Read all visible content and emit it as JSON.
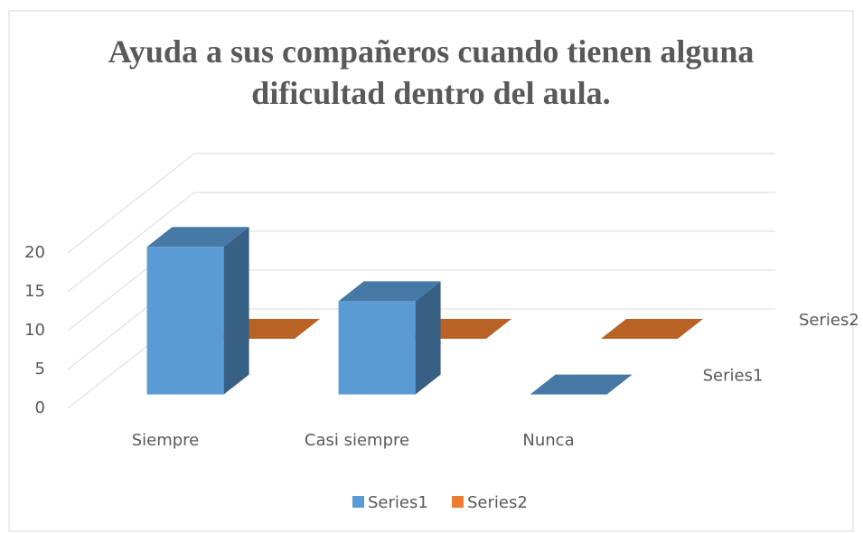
{
  "chart_data": {
    "type": "bar3d",
    "title": "Ayuda a sus compañeros cuando tienen alguna dificultad dentro del aula.",
    "categories": [
      "Siempre",
      "Casi siempre",
      "Nunca"
    ],
    "series": [
      {
        "name": "Series1",
        "color": "#5b9bd5",
        "values": [
          19,
          12,
          0
        ]
      },
      {
        "name": "Series2",
        "color": "#ed7d31",
        "values": [
          0,
          0,
          0
        ]
      }
    ],
    "ylim": [
      0,
      20
    ],
    "yticks": [
      0,
      5,
      10,
      15,
      20
    ],
    "grid": true,
    "legend": "bottom"
  }
}
